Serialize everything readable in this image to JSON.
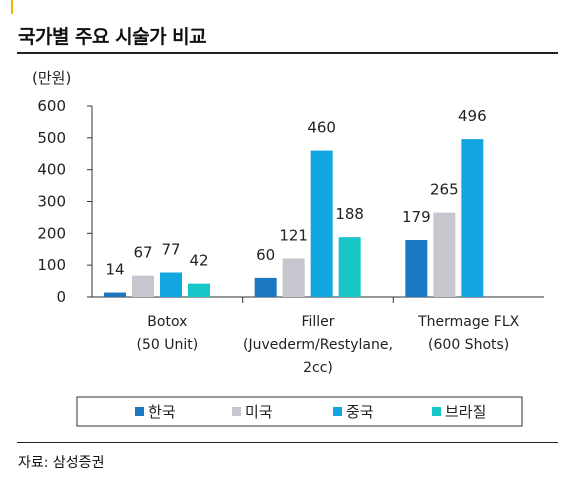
{
  "title": "국가별 주요 시술가 비교",
  "source": "자료: 삼성증권",
  "chart_data": {
    "type": "bar",
    "unit_label": "(만원)",
    "ylim": [
      0,
      600
    ],
    "yticks": [
      0,
      100,
      200,
      300,
      400,
      500,
      600
    ],
    "categories": [
      [
        "Botox",
        "(50 Unit)"
      ],
      [
        "Filler",
        "(Juvederm/Restylane,",
        "2cc)"
      ],
      [
        "Thermage FLX",
        "(600 Shots)"
      ]
    ],
    "series": [
      {
        "name": "한국",
        "color": "#1a78c2",
        "values": [
          14,
          60,
          179
        ]
      },
      {
        "name": "미국",
        "color": "#c6c6ce",
        "values": [
          67,
          121,
          265
        ]
      },
      {
        "name": "중국",
        "color": "#12a6e0",
        "values": [
          77,
          460,
          496
        ]
      },
      {
        "name": "브라질",
        "color": "#17c7c7",
        "values": [
          42,
          188,
          null
        ]
      }
    ],
    "legend_position": "bottom",
    "grid": false
  }
}
